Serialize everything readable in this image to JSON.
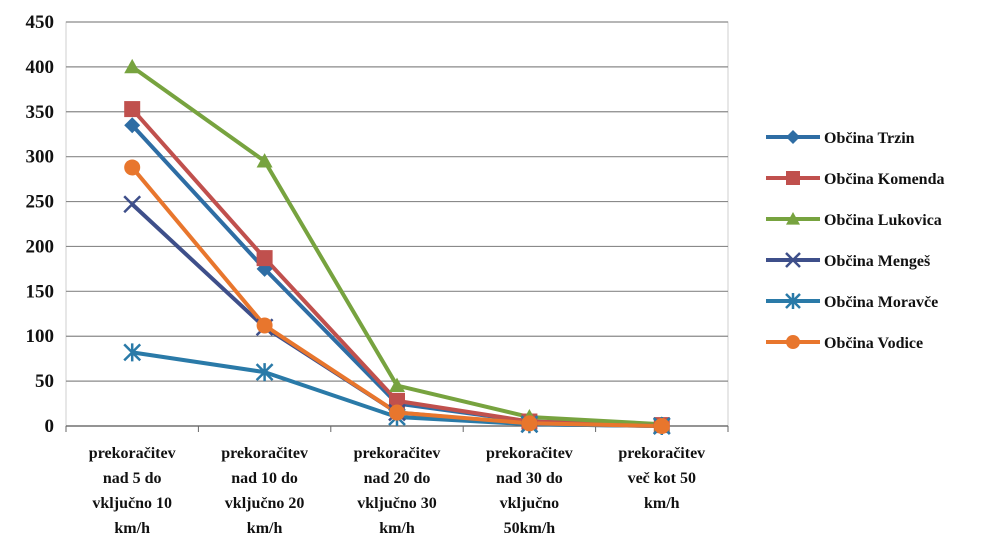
{
  "chart_data": {
    "type": "line",
    "ylim": [
      0,
      450
    ],
    "y_ticks": [
      "0",
      "50",
      "100",
      "150",
      "200",
      "250",
      "300",
      "350",
      "400",
      "450"
    ],
    "grid": "horizontal",
    "legend_position": "right",
    "categories": [
      [
        "prekoračitev",
        "nad 5 do",
        "vključno 10",
        "km/h"
      ],
      [
        "prekoračitev",
        "nad  10 do",
        "vključno 20",
        "km/h"
      ],
      [
        "prekoračitev",
        "nad  20 do",
        "vključno 30",
        "km/h"
      ],
      [
        "prekoračitev",
        "nad  30  do",
        "vključno",
        "50km/h"
      ],
      [
        "prekoračitev",
        "več kot 50",
        "km/h"
      ]
    ],
    "series": [
      {
        "name": "Občina Trzin",
        "color": "#2e6da4",
        "marker": "diamond",
        "values": [
          335,
          175,
          25,
          5,
          1
        ]
      },
      {
        "name": "Občina Komenda",
        "color": "#c0504d",
        "marker": "square",
        "values": [
          353,
          187,
          28,
          5,
          1
        ]
      },
      {
        "name": "Občina Lukovica",
        "color": "#77a33f",
        "marker": "triangle",
        "values": [
          400,
          295,
          45,
          10,
          2
        ]
      },
      {
        "name": "Občina Mengeš",
        "color": "#3e4f8a",
        "marker": "x",
        "values": [
          247,
          110,
          15,
          2,
          0
        ]
      },
      {
        "name": "Občina Moravče",
        "color": "#2a7aa8",
        "marker": "star",
        "values": [
          82,
          60,
          10,
          2,
          0
        ]
      },
      {
        "name": "Občina Vodice",
        "color": "#e8762d",
        "marker": "circle",
        "values": [
          288,
          112,
          15,
          3,
          0
        ]
      }
    ]
  }
}
